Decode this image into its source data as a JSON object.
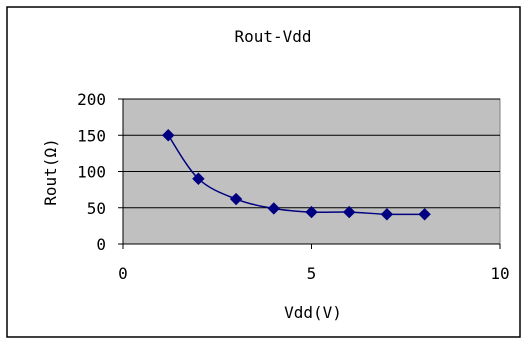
{
  "chart_data": {
    "type": "scatter",
    "title": "Rout-Vdd",
    "xlabel": "Vdd(V)",
    "ylabel": "Rout(Ω)",
    "xlim": [
      0,
      10
    ],
    "ylim": [
      0,
      200
    ],
    "x_ticks": [
      0,
      5,
      10
    ],
    "y_ticks": [
      0,
      50,
      100,
      150,
      200
    ],
    "grid": "horizontal",
    "legend": "none",
    "smoothed_line": true,
    "series": [
      {
        "x": [
          1.2,
          2,
          3,
          4,
          5,
          6,
          7,
          8
        ],
        "y": [
          150,
          90,
          62,
          49,
          44,
          44,
          41,
          41
        ],
        "color": "#000080"
      }
    ],
    "colors": {
      "plot_background": "#c0c0c0",
      "marker": "#000080",
      "gridline": "#000000"
    }
  }
}
